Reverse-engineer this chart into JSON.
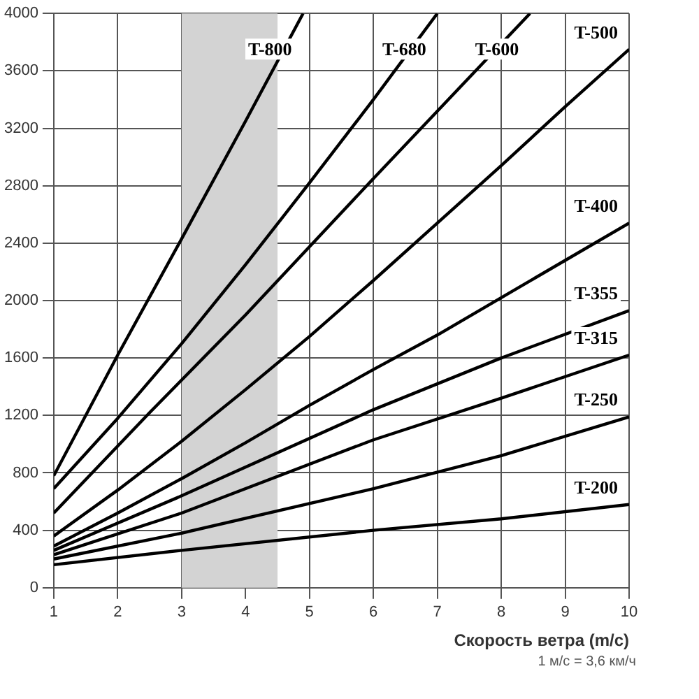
{
  "chart_data": {
    "type": "line",
    "xlabel": "Скорость ветра (m/c)",
    "xlim": [
      1,
      10
    ],
    "xticks": [
      1,
      2,
      3,
      4,
      5,
      6,
      7,
      8,
      9,
      10
    ],
    "ylim": [
      0,
      4000
    ],
    "yticks": [
      0,
      400,
      800,
      1200,
      1600,
      2000,
      2400,
      2800,
      3200,
      3600,
      4000
    ],
    "grid": true,
    "legend": false,
    "marker": "none",
    "line_style": "solid",
    "bands": [
      {
        "axis": "x",
        "from": 3,
        "to": 4.5,
        "color": "#d3d3d3"
      }
    ],
    "annotations": [
      "1 м/с = 3,6 км/ч"
    ],
    "series": [
      {
        "name": "T-800",
        "color": "#000000",
        "x": [
          1,
          2,
          3,
          4,
          4.9
        ],
        "values": [
          780,
          1620,
          2430,
          3250,
          4000
        ]
      },
      {
        "name": "T-680",
        "color": "#000000",
        "x": [
          1,
          2,
          3,
          4,
          5,
          6,
          7
        ],
        "values": [
          690,
          1180,
          1700,
          2250,
          2820,
          3400,
          4000
        ]
      },
      {
        "name": "T-600",
        "color": "#000000",
        "x": [
          1,
          2.5,
          4,
          6,
          8.45
        ],
        "values": [
          520,
          1220,
          1900,
          2850,
          4000
        ]
      },
      {
        "name": "T-500",
        "color": "#000000",
        "x": [
          1,
          2,
          3,
          4,
          5,
          6,
          7,
          8,
          9,
          10
        ],
        "values": [
          360,
          680,
          1020,
          1380,
          1750,
          2140,
          2540,
          2940,
          3350,
          3750
        ]
      },
      {
        "name": "T-400",
        "color": "#000000",
        "x": [
          1,
          2,
          3,
          4,
          5,
          6,
          7,
          8,
          9,
          10
        ],
        "values": [
          290,
          520,
          760,
          1010,
          1270,
          1520,
          1760,
          2020,
          2280,
          2540
        ]
      },
      {
        "name": "T-355",
        "color": "#000000",
        "x": [
          1,
          3,
          6,
          8,
          10
        ],
        "values": [
          260,
          640,
          1240,
          1600,
          1930
        ]
      },
      {
        "name": "T-315",
        "color": "#000000",
        "x": [
          1,
          3,
          6,
          8,
          10
        ],
        "values": [
          230,
          520,
          1030,
          1320,
          1620
        ]
      },
      {
        "name": "T-250",
        "color": "#000000",
        "x": [
          1,
          3,
          6,
          8,
          10
        ],
        "values": [
          200,
          380,
          690,
          920,
          1190
        ]
      },
      {
        "name": "T-200",
        "color": "#000000",
        "x": [
          1,
          3,
          6,
          8,
          10
        ],
        "values": [
          160,
          260,
          400,
          480,
          580
        ]
      }
    ]
  }
}
